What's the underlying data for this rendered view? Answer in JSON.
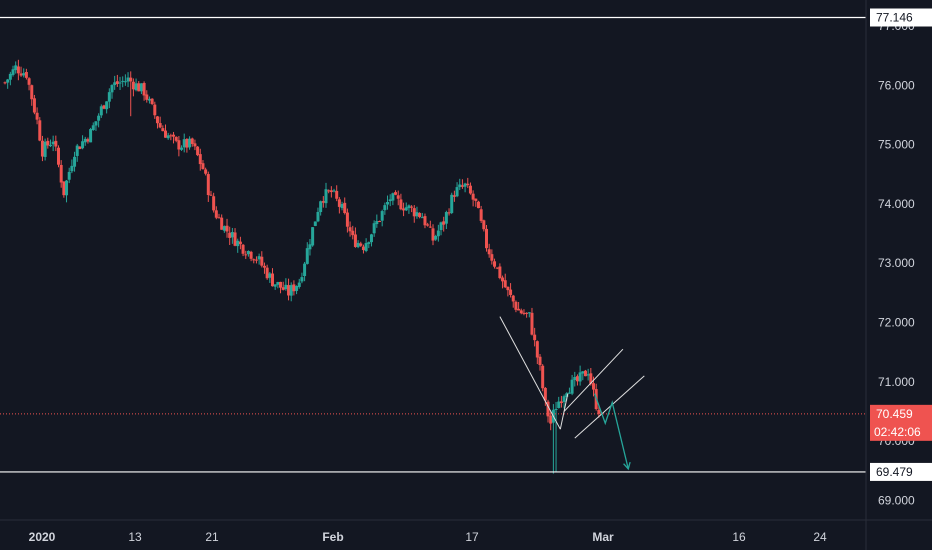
{
  "chart_data": {
    "type": "candlestick",
    "colors": {
      "background": "#131722",
      "up": "#26a69a",
      "down": "#ef5350",
      "grid": "#1e222d",
      "axis_text": "#d1d4dc",
      "drawing": "#e0e0e0",
      "arrow": "#26a69a"
    },
    "grid": false,
    "ylim": [
      68.55,
      77.5
    ],
    "y_ticks": [
      "77.000",
      "76.000",
      "75.000",
      "74.000",
      "73.000",
      "72.000",
      "71.000",
      "70.000",
      "69.000"
    ],
    "x_ticks": [
      "2020",
      "13",
      "21",
      "Feb",
      "17",
      "Mar",
      "16",
      "24"
    ],
    "x_tick_bold": [
      "2020",
      "Feb",
      "Mar"
    ],
    "horizontal_levels": [
      {
        "value": 77.146,
        "label": "77.146",
        "style": "solid"
      },
      {
        "value": 69.479,
        "label": "69.479",
        "style": "solid"
      }
    ],
    "last_price": {
      "value": 70.459,
      "label": "70.459",
      "countdown": "02:42:06",
      "style": "dotted"
    },
    "anchors": [
      {
        "day": 0,
        "price": 76.05
      },
      {
        "day": 2,
        "price": 76.3
      },
      {
        "day": 4,
        "price": 76.2
      },
      {
        "day": 6,
        "price": 75.4
      },
      {
        "day": 7,
        "price": 74.9
      },
      {
        "day": 9,
        "price": 75.1
      },
      {
        "day": 11,
        "price": 74.2
      },
      {
        "day": 13,
        "price": 74.9
      },
      {
        "day": 16,
        "price": 75.2
      },
      {
        "day": 18,
        "price": 75.6
      },
      {
        "day": 20,
        "price": 76.0
      },
      {
        "day": 23,
        "price": 76.1
      },
      {
        "day": 26,
        "price": 75.9
      },
      {
        "day": 29,
        "price": 75.3
      },
      {
        "day": 32,
        "price": 75.0
      },
      {
        "day": 35,
        "price": 75.0
      },
      {
        "day": 37,
        "price": 74.6
      },
      {
        "day": 39,
        "price": 73.9
      },
      {
        "day": 41,
        "price": 73.6
      },
      {
        "day": 44,
        "price": 73.3
      },
      {
        "day": 47,
        "price": 73.1
      },
      {
        "day": 50,
        "price": 72.7
      },
      {
        "day": 53,
        "price": 72.5
      },
      {
        "day": 55,
        "price": 72.7
      },
      {
        "day": 57,
        "price": 73.4
      },
      {
        "day": 59,
        "price": 74.1
      },
      {
        "day": 61,
        "price": 74.2
      },
      {
        "day": 63,
        "price": 73.9
      },
      {
        "day": 65,
        "price": 73.4
      },
      {
        "day": 67,
        "price": 73.3
      },
      {
        "day": 69,
        "price": 73.6
      },
      {
        "day": 72,
        "price": 74.1
      },
      {
        "day": 74,
        "price": 74.0
      },
      {
        "day": 76,
        "price": 73.9
      },
      {
        "day": 78,
        "price": 73.8
      },
      {
        "day": 80,
        "price": 73.4
      },
      {
        "day": 82,
        "price": 73.7
      },
      {
        "day": 84,
        "price": 74.2
      },
      {
        "day": 86,
        "price": 74.3
      },
      {
        "day": 88,
        "price": 74.0
      },
      {
        "day": 90,
        "price": 73.3
      },
      {
        "day": 92,
        "price": 72.9
      },
      {
        "day": 94,
        "price": 72.5
      },
      {
        "day": 96,
        "price": 72.2
      },
      {
        "day": 98,
        "price": 72.1
      },
      {
        "day": 100,
        "price": 71.2
      },
      {
        "day": 101,
        "price": 70.6
      },
      {
        "day": 102,
        "price": 70.3
      },
      {
        "day": 103,
        "price": 70.6
      },
      {
        "day": 105,
        "price": 70.9
      },
      {
        "day": 107,
        "price": 71.0
      },
      {
        "day": 109,
        "price": 71.2
      },
      {
        "day": 110,
        "price": 70.8
      },
      {
        "day": 111,
        "price": 70.46
      }
    ],
    "drawings": [
      {
        "kind": "line",
        "from": {
          "day": 92.5,
          "price": 72.1
        },
        "to": {
          "day": 103.8,
          "price": 70.2
        }
      },
      {
        "kind": "line",
        "from": {
          "day": 103.8,
          "price": 70.2
        },
        "to": {
          "day": 105.2,
          "price": 70.8
        }
      },
      {
        "kind": "line",
        "from": {
          "day": 104.5,
          "price": 70.5
        },
        "to": {
          "day": 115.5,
          "price": 71.55
        }
      },
      {
        "kind": "line",
        "from": {
          "day": 106.5,
          "price": 70.05
        },
        "to": {
          "day": 119.5,
          "price": 71.1
        }
      },
      {
        "kind": "arrow",
        "points": [
          {
            "day": 110.2,
            "price": 70.8
          },
          {
            "day": 112.2,
            "price": 70.3
          },
          {
            "day": 113.5,
            "price": 70.65
          },
          {
            "day": 116.5,
            "price": 69.53
          }
        ]
      }
    ]
  }
}
